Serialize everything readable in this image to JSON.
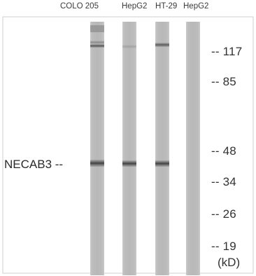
{
  "lanes": [
    {
      "label": "COLO 205"
    },
    {
      "label": "HepG2"
    },
    {
      "label": "HT-29"
    },
    {
      "label": "HepG2"
    }
  ],
  "markers": [
    {
      "label": "-- 117",
      "kd": 117
    },
    {
      "label": "-- 85",
      "kd": 85
    },
    {
      "label": "-- 48",
      "kd": 48
    },
    {
      "label": "-- 34",
      "kd": 34
    },
    {
      "label": "-- 26",
      "kd": 26
    },
    {
      "label": "-- 19",
      "kd": 19
    }
  ],
  "unit": "(kD)",
  "protein": {
    "label": "NECAB3 --"
  }
}
